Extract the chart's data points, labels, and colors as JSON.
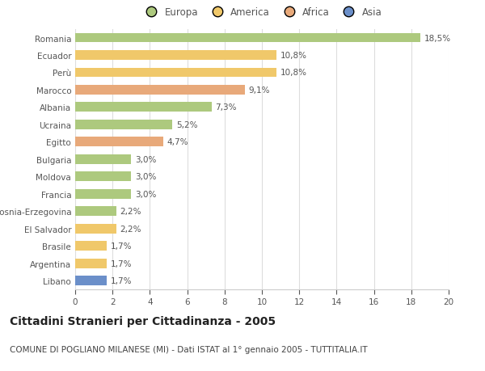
{
  "countries": [
    "Romania",
    "Ecuador",
    "Perù",
    "Marocco",
    "Albania",
    "Ucraina",
    "Egitto",
    "Bulgaria",
    "Moldova",
    "Francia",
    "Bosnia-Erzegovina",
    "El Salvador",
    "Brasile",
    "Argentina",
    "Libano"
  ],
  "values": [
    18.5,
    10.8,
    10.8,
    9.1,
    7.3,
    5.2,
    4.7,
    3.0,
    3.0,
    3.0,
    2.2,
    2.2,
    1.7,
    1.7,
    1.7
  ],
  "continents": [
    "Europa",
    "America",
    "America",
    "Africa",
    "Europa",
    "Europa",
    "Africa",
    "Europa",
    "Europa",
    "Europa",
    "Europa",
    "America",
    "America",
    "America",
    "Asia"
  ],
  "colors": {
    "Europa": "#adc97e",
    "America": "#f0c86a",
    "Africa": "#e8a97a",
    "Asia": "#6b8fc9"
  },
  "legend_order": [
    "Europa",
    "America",
    "Africa",
    "Asia"
  ],
  "xlim": [
    0,
    20
  ],
  "xticks": [
    0,
    2,
    4,
    6,
    8,
    10,
    12,
    14,
    16,
    18,
    20
  ],
  "title": "Cittadini Stranieri per Cittadinanza - 2005",
  "subtitle": "COMUNE DI POGLIANO MILANESE (MI) - Dati ISTAT al 1° gennaio 2005 - TUTTITALIA.IT",
  "bar_height": 0.55,
  "background_color": "#ffffff",
  "grid_color": "#dddddd",
  "label_fontsize": 7.5,
  "title_fontsize": 10,
  "subtitle_fontsize": 7.5,
  "legend_fontsize": 8.5,
  "tick_fontsize": 7.5
}
